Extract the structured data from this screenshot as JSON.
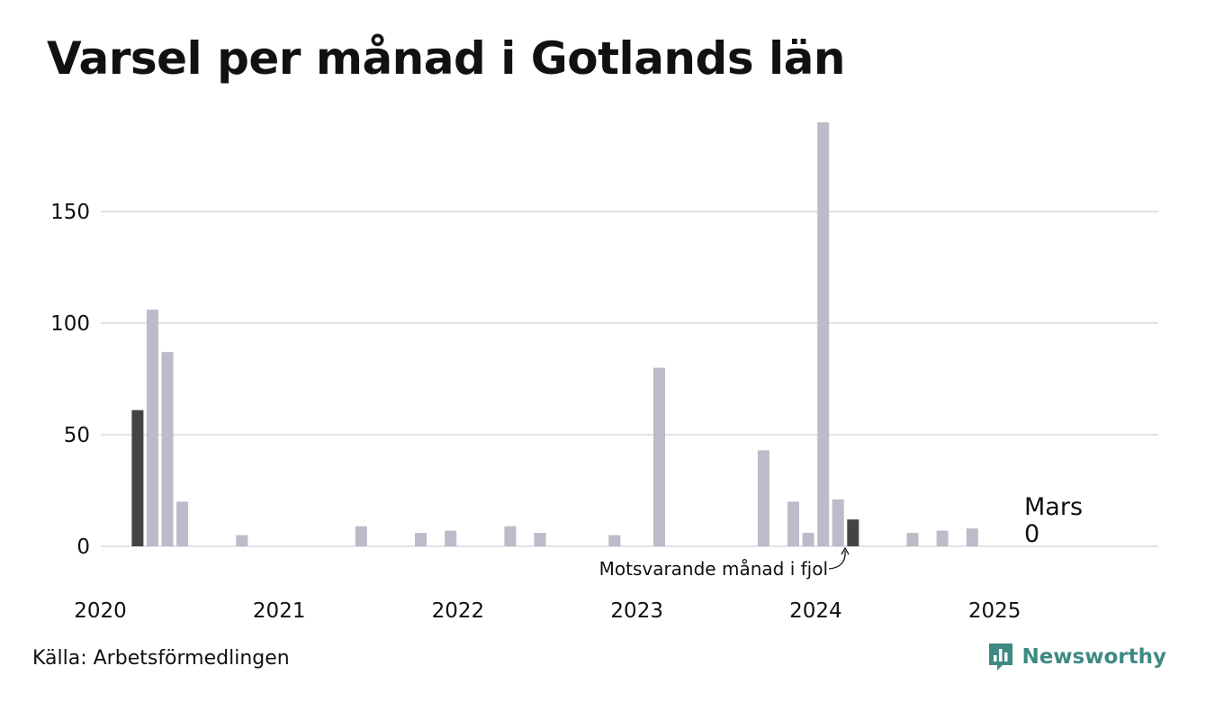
{
  "title": "Varsel per månad i Gotlands län",
  "source": "Källa: Arbetsförmedlingen",
  "brand": {
    "name": "Newsworthy",
    "icon": "newsworthy-logo-icon",
    "color": "#3e8a83"
  },
  "chart_data": {
    "type": "bar",
    "title": "Varsel per månad i Gotlands län",
    "xlabel": "",
    "ylabel": "",
    "ylim": [
      0,
      190
    ],
    "yticks": [
      0,
      50,
      100,
      150
    ],
    "xticks": [
      "2020",
      "2021",
      "2022",
      "2023",
      "2024",
      "2025"
    ],
    "x_start": "2020-01",
    "grid": true,
    "colors": {
      "default": "#bcbbc9",
      "highlight": "#444444"
    },
    "highlighted_months": [
      "2020-03",
      "2024-03"
    ],
    "months": [
      "2020-01",
      "2020-02",
      "2020-03",
      "2020-04",
      "2020-05",
      "2020-06",
      "2020-07",
      "2020-08",
      "2020-09",
      "2020-10",
      "2020-11",
      "2020-12",
      "2021-01",
      "2021-02",
      "2021-03",
      "2021-04",
      "2021-05",
      "2021-06",
      "2021-07",
      "2021-08",
      "2021-09",
      "2021-10",
      "2021-11",
      "2021-12",
      "2022-01",
      "2022-02",
      "2022-03",
      "2022-04",
      "2022-05",
      "2022-06",
      "2022-07",
      "2022-08",
      "2022-09",
      "2022-10",
      "2022-11",
      "2022-12",
      "2023-01",
      "2023-02",
      "2023-03",
      "2023-04",
      "2023-05",
      "2023-06",
      "2023-07",
      "2023-08",
      "2023-09",
      "2023-10",
      "2023-11",
      "2023-12",
      "2024-01",
      "2024-02",
      "2024-03",
      "2024-04",
      "2024-05",
      "2024-06",
      "2024-07",
      "2024-08",
      "2024-09",
      "2024-10",
      "2024-11",
      "2024-12",
      "2025-01",
      "2025-02",
      "2025-03"
    ],
    "values": [
      0,
      0,
      61,
      106,
      87,
      20,
      0,
      0,
      0,
      5,
      0,
      0,
      0,
      0,
      0,
      0,
      0,
      9,
      0,
      0,
      0,
      6,
      0,
      7,
      0,
      0,
      0,
      9,
      0,
      6,
      0,
      0,
      0,
      0,
      5,
      0,
      0,
      80,
      0,
      0,
      0,
      0,
      0,
      0,
      43,
      0,
      20,
      6,
      190,
      21,
      12,
      0,
      0,
      0,
      6,
      0,
      7,
      0,
      8,
      0,
      0,
      0,
      0
    ],
    "annotations": {
      "previous_year": "Motsvarande månad i fjol",
      "latest_label": "Mars",
      "latest_value": "0"
    }
  }
}
